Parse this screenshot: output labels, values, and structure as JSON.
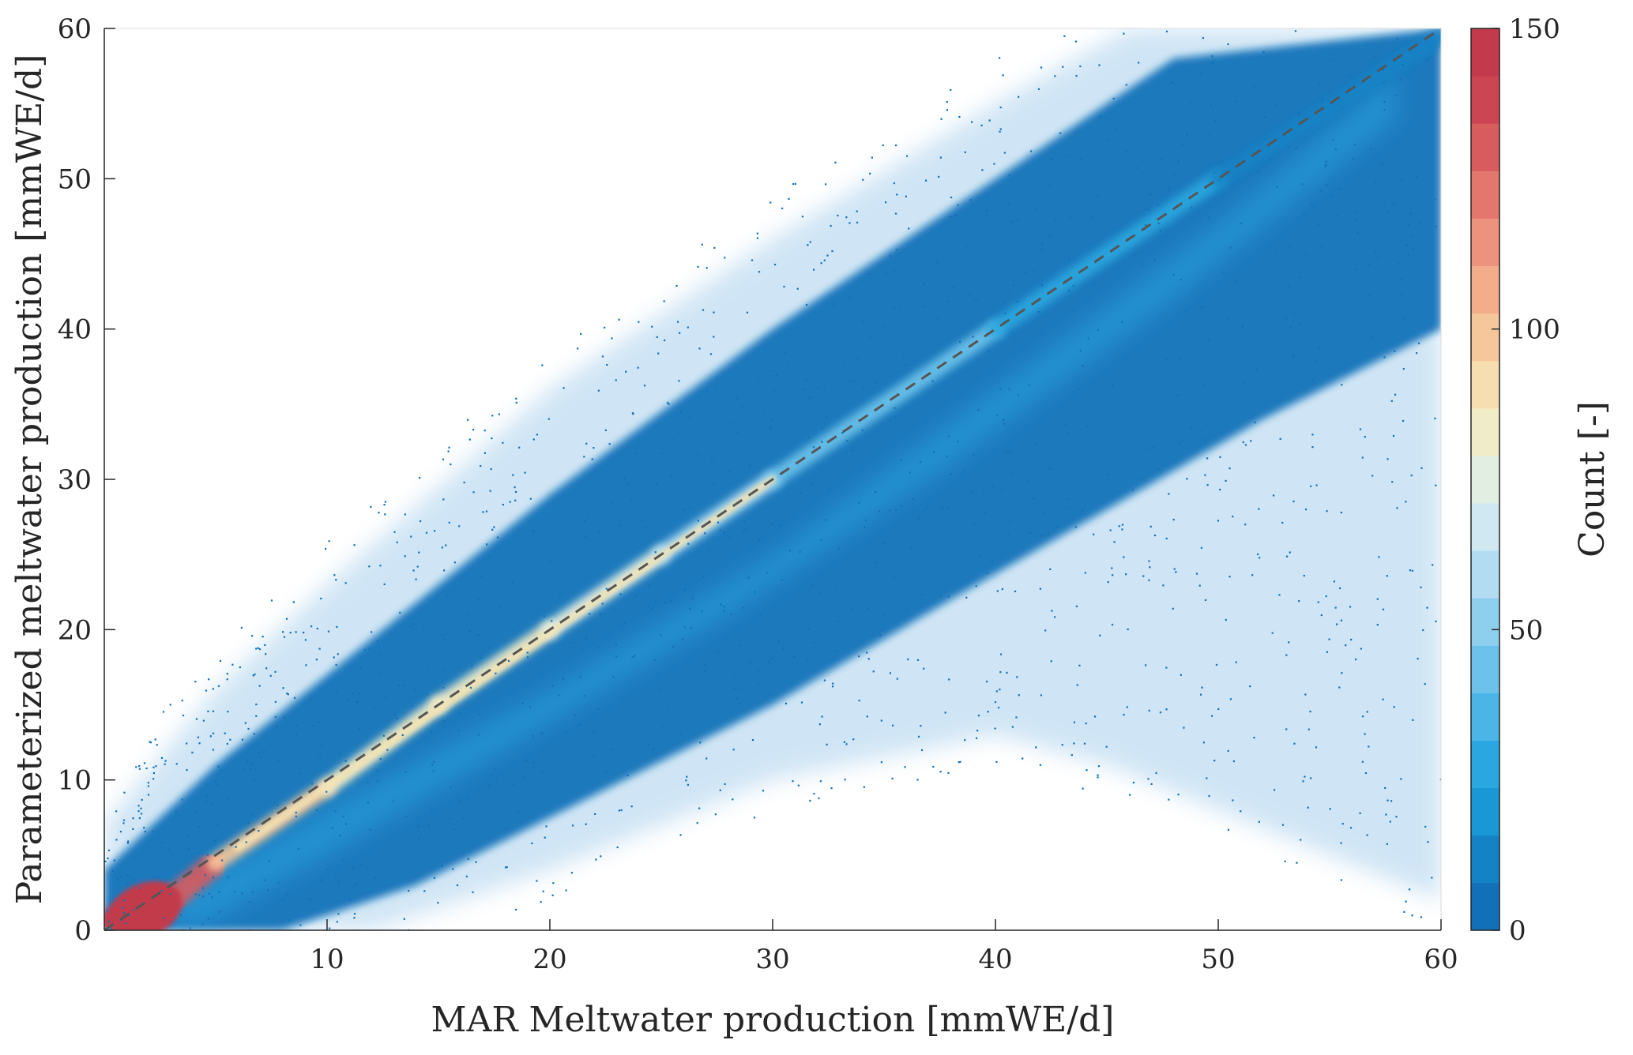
{
  "chart_data": {
    "type": "heatmap",
    "title": "",
    "xlabel": "MAR Meltwater production [mmWE/d]",
    "ylabel": "Parameterized meltwater production [mmWE/d]",
    "xlim": [
      0,
      60
    ],
    "ylim": [
      0,
      60
    ],
    "x_ticks": [
      10,
      20,
      30,
      40,
      50,
      60
    ],
    "y_ticks": [
      0,
      10,
      20,
      30,
      40,
      50,
      60
    ],
    "grid": false,
    "reference_line": {
      "x": [
        0,
        60
      ],
      "y": [
        0,
        60
      ],
      "style": "dashed",
      "color": "#555555"
    },
    "colorbar": {
      "label": "Count [-]",
      "range": [
        0,
        150
      ],
      "ticks": [
        0,
        50,
        100,
        150
      ],
      "colors": [
        "#1170b8",
        "#1483c6",
        "#1a97d5",
        "#2aa7e0",
        "#4ab5e6",
        "#6cc2ea",
        "#8fcfee",
        "#b1dcf1",
        "#cfe8f1",
        "#e3eee3",
        "#f1ecc8",
        "#f6deb0",
        "#f6c79a",
        "#f3ad8a",
        "#ed927c",
        "#e4776d",
        "#d85c5e",
        "#cc4552",
        "#c23a4c"
      ]
    },
    "density_ridge": [
      {
        "x": 0,
        "y": 0.5,
        "count": 150
      },
      {
        "x": 3,
        "y": 2,
        "count": 150
      },
      {
        "x": 5,
        "y": 4.5,
        "count": 110
      },
      {
        "x": 10,
        "y": 9.5,
        "count": 80
      },
      {
        "x": 15,
        "y": 15,
        "count": 80
      },
      {
        "x": 20,
        "y": 20,
        "count": 85
      },
      {
        "x": 25,
        "y": 25,
        "count": 70
      },
      {
        "x": 30,
        "y": 30,
        "count": 55
      },
      {
        "x": 40,
        "y": 40,
        "count": 35
      },
      {
        "x": 50,
        "y": 50,
        "count": 20
      },
      {
        "x": 60,
        "y": 59.5,
        "count": 10
      }
    ]
  }
}
